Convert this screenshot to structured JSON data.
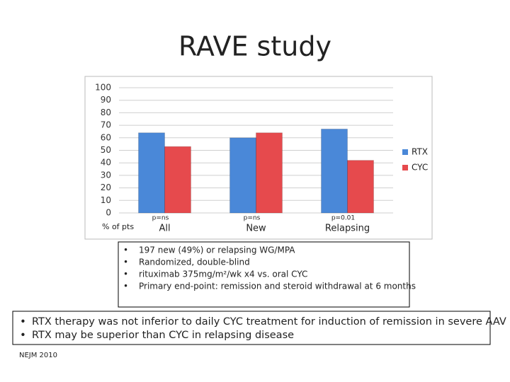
{
  "chart_data": {
    "type": "bar",
    "title": "RAVE study",
    "y_label": "% of pts",
    "categories": [
      "All",
      "New",
      "Relapsing"
    ],
    "annotations": [
      "p=ns",
      "p=ns",
      "p=0.01"
    ],
    "series": [
      {
        "name": "RTX",
        "color": "#4a88d8",
        "values": [
          64,
          60,
          67
        ]
      },
      {
        "name": "CYC",
        "color": "#e64a4d",
        "values": [
          53,
          64,
          42
        ]
      }
    ],
    "ylim": [
      0,
      100
    ],
    "yticks": [
      0,
      10,
      20,
      30,
      40,
      50,
      60,
      70,
      80,
      90,
      100
    ],
    "grid": true,
    "legend": "right"
  },
  "details": [
    "197 new (49%) or relapsing WG/MPA",
    "Randomized, double-blind",
    "rituximab 375mg/m²/wk x4 vs. oral CYC",
    "Primary end-point: remission and steroid withdrawal at 6 months"
  ],
  "conclusions": [
    "RTX therapy was not inferior to daily CYC treatment for induction of remission in severe AAV",
    "RTX may be superior than CYC in relapsing disease"
  ],
  "source": "NEJM 2010"
}
